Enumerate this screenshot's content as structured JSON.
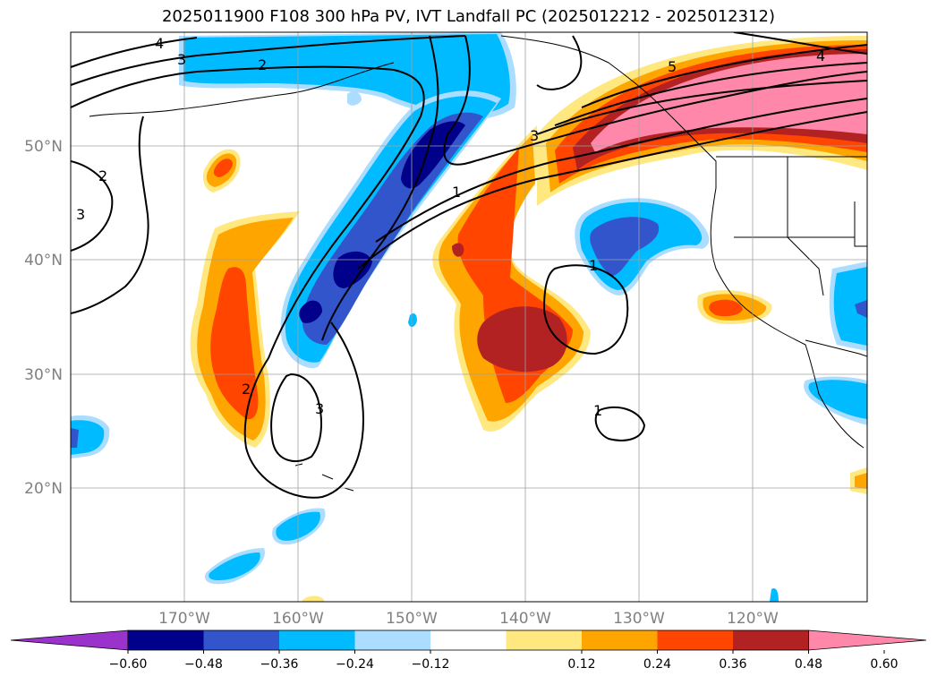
{
  "title": "2025011900 F108 300 hPa PV, IVT Landfall PC (2025012212 - 2025012312)",
  "map": {
    "lat_labels": [
      "50°N",
      "40°N",
      "30°N",
      "20°N"
    ],
    "lon_labels": [
      "170°W",
      "160°W",
      "150°W",
      "140°W",
      "130°W",
      "120°W"
    ],
    "contour_labels": [
      "4",
      "3",
      "2",
      "2",
      "3",
      "3",
      "1",
      "1",
      "2",
      "3",
      "1",
      "5",
      "4"
    ]
  },
  "colorbar": {
    "ticks": [
      "−0.60",
      "−0.48",
      "−0.36",
      "−0.24",
      "−0.12",
      "0.12",
      "0.24",
      "0.36",
      "0.48",
      "0.60"
    ],
    "colors": [
      "#9933cc",
      "#00008b",
      "#3355cc",
      "#00bbff",
      "#aaddff",
      "#ffffff",
      "#ffe880",
      "#ffa500",
      "#ff4500",
      "#b22222",
      "#ff88aa"
    ]
  }
}
